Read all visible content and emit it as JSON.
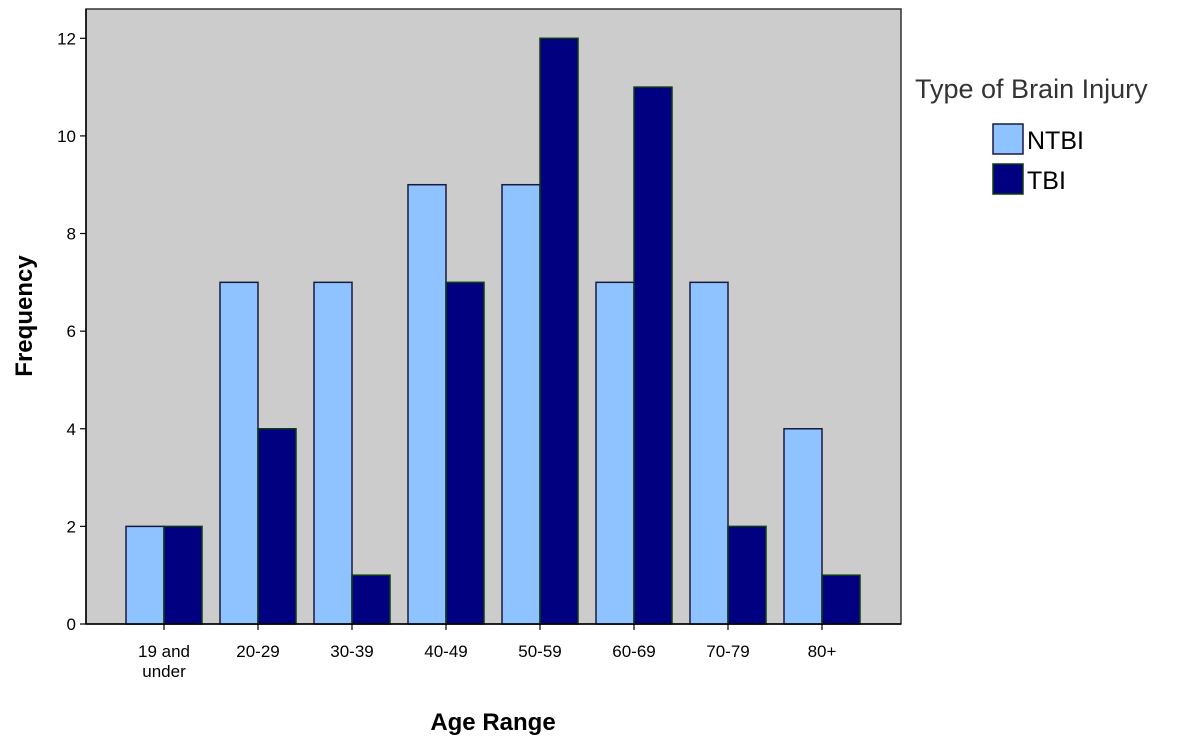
{
  "chart_data": {
    "type": "bar",
    "xlabel": "Age Range",
    "ylabel": "Frequency",
    "categories": [
      [
        "19 and",
        "under"
      ],
      [
        "20-29"
      ],
      [
        "30-39"
      ],
      [
        "40-49"
      ],
      [
        "50-59"
      ],
      [
        "60-69"
      ],
      [
        "70-79"
      ],
      [
        "80+"
      ]
    ],
    "series": [
      {
        "name": "NTBI",
        "color": "#8fc3ff",
        "values": [
          2,
          7,
          7,
          9,
          9,
          7,
          7,
          4
        ]
      },
      {
        "name": "TBI",
        "color": "#000080",
        "values": [
          2,
          4,
          1,
          7,
          12,
          11,
          2,
          1
        ]
      }
    ],
    "ylim": [
      0,
      12.6
    ],
    "yticks": [
      0,
      2,
      4,
      6,
      8,
      10,
      12
    ],
    "grid": false,
    "plot_background": "#cccccc",
    "legend": {
      "title": "Type of Brain Injury",
      "placement": "right"
    }
  }
}
